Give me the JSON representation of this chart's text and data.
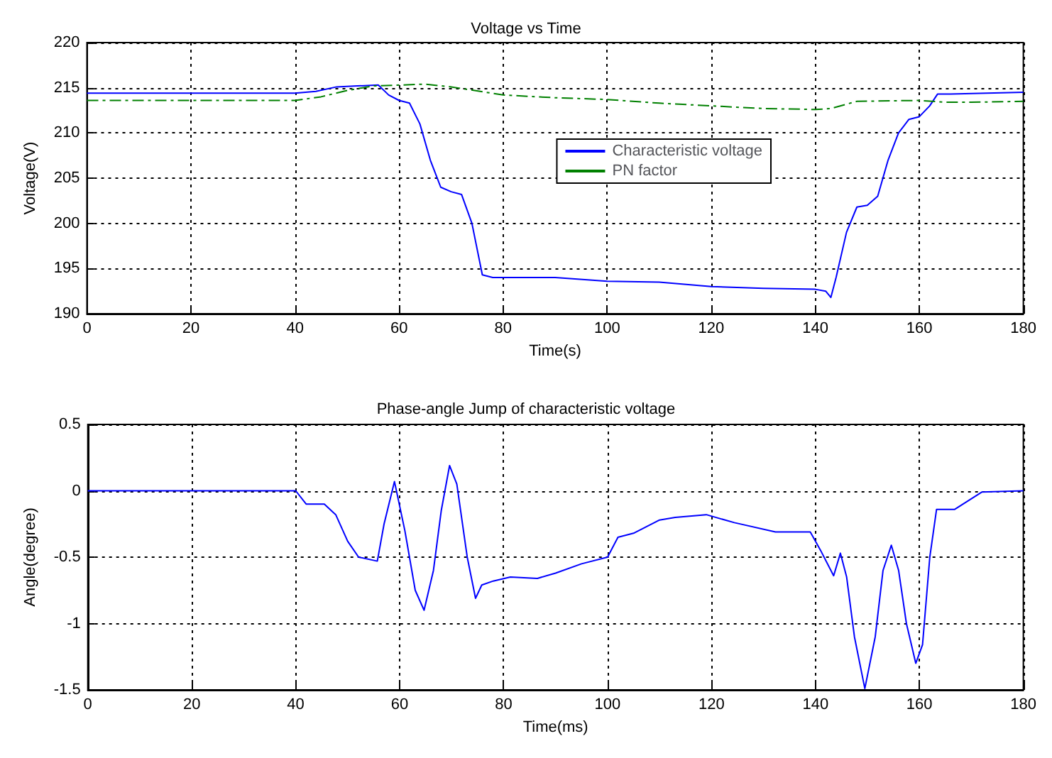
{
  "chart_data": [
    {
      "type": "line",
      "title": "Voltage vs Time",
      "xlabel": "Time(s)",
      "ylabel": "Voltage(V)",
      "xlim": [
        0,
        180
      ],
      "xticks": [
        0,
        20,
        40,
        60,
        80,
        100,
        120,
        140,
        160,
        180
      ],
      "ylim": [
        190,
        220
      ],
      "yticks": [
        190,
        195,
        200,
        205,
        210,
        215,
        220
      ],
      "grid": true,
      "legend": "right",
      "marker": "none",
      "series": [
        {
          "name": "Characteristic voltage",
          "color": "#0000ff",
          "line_style": "solid",
          "x": [
            0,
            40,
            44,
            48,
            52,
            56,
            58,
            60,
            62,
            64,
            66,
            68,
            70,
            72,
            74,
            76,
            78,
            90,
            100,
            110,
            120,
            130,
            140,
            142,
            143,
            144,
            146,
            148,
            150,
            152,
            154,
            156,
            158,
            160,
            162,
            163.5,
            166,
            180
          ],
          "values": [
            214.4,
            214.4,
            214.6,
            215.1,
            215.2,
            215.3,
            214.2,
            213.6,
            213.3,
            211,
            207,
            204,
            203.5,
            203.2,
            200,
            194.3,
            194,
            194,
            193.6,
            193.5,
            193,
            192.8,
            192.7,
            192.5,
            191.8,
            194,
            199,
            201.8,
            202,
            203,
            207,
            210,
            211.5,
            211.8,
            213,
            214.3,
            214.3,
            214.5
          ]
        },
        {
          "name": "PN factor",
          "color": "#008000",
          "line_style": "dashed",
          "x": [
            0,
            40,
            45,
            50,
            55,
            65,
            70,
            80,
            90,
            100,
            110,
            120,
            130,
            140,
            143,
            148,
            160,
            165,
            170,
            180
          ],
          "values": [
            213.6,
            213.6,
            214,
            214.7,
            215.2,
            215.4,
            215.1,
            214.2,
            213.9,
            213.7,
            213.3,
            213,
            212.7,
            212.6,
            212.7,
            213.5,
            213.6,
            213.4,
            213.4,
            213.5
          ]
        }
      ]
    },
    {
      "type": "line",
      "title": "Phase-angle Jump of characteristic voltage",
      "xlabel": "Time(ms)",
      "ylabel": "Angle(degree)",
      "xlim": [
        0,
        180
      ],
      "xticks": [
        0,
        20,
        40,
        60,
        80,
        100,
        120,
        140,
        160,
        180
      ],
      "ylim": [
        -1.5,
        0.5
      ],
      "yticks": [
        -1.5,
        -1,
        -0.5,
        0,
        0.5
      ],
      "grid": true,
      "legend": false,
      "marker": "none",
      "series": [
        {
          "color": "#0000ff",
          "line_style": "solid",
          "x": [
            0,
            40,
            42,
            45.5,
            47.7,
            50,
            52.1,
            55.7,
            57,
            59,
            61,
            63,
            64.7,
            66.5,
            68,
            69.6,
            71,
            73,
            74.6,
            75.8,
            78,
            81.3,
            86.5,
            90,
            95,
            100,
            102,
            105,
            110,
            113,
            119,
            124.4,
            132.3,
            139,
            141,
            143.5,
            144.8,
            146,
            147.5,
            149.5,
            151.5,
            153,
            154.6,
            156,
            157.5,
            159.3,
            160.6,
            162,
            163.3,
            166.8,
            172,
            180
          ],
          "values": [
            0,
            0,
            -0.1,
            -0.1,
            -0.18,
            -0.38,
            -0.5,
            -0.53,
            -0.25,
            0.07,
            -0.3,
            -0.75,
            -0.9,
            -0.6,
            -0.15,
            0.19,
            0.05,
            -0.5,
            -0.81,
            -0.71,
            -0.68,
            -0.65,
            -0.66,
            -0.62,
            -0.55,
            -0.5,
            -0.35,
            -0.32,
            -0.22,
            -0.2,
            -0.18,
            -0.24,
            -0.31,
            -0.31,
            -0.45,
            -0.64,
            -0.47,
            -0.65,
            -1.1,
            -1.49,
            -1.1,
            -0.6,
            -0.41,
            -0.6,
            -1.0,
            -1.3,
            -1.16,
            -0.5,
            -0.14,
            -0.14,
            -0.01,
            0
          ]
        }
      ]
    }
  ]
}
